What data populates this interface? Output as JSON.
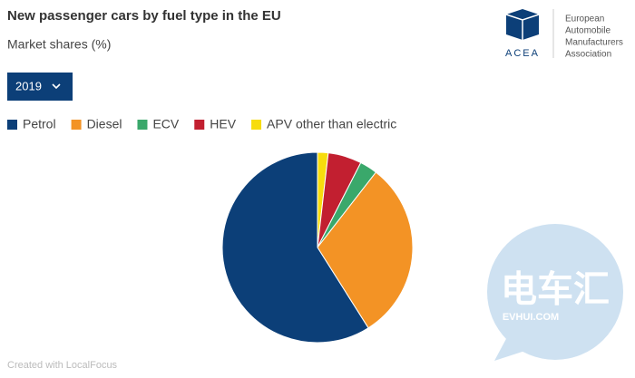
{
  "chart_data": {
    "type": "pie",
    "title": "New passenger cars by fuel type in the EU",
    "subtitle": "Market shares (%)",
    "categories": [
      "Petrol",
      "Diesel",
      "ECV",
      "HEV",
      "APV other than electric"
    ],
    "values": [
      58.9,
      30.5,
      3.0,
      5.7,
      1.8
    ],
    "colors": [
      "#0c3f78",
      "#f39325",
      "#3aa86b",
      "#c21f30",
      "#f7dc0d"
    ],
    "legend": "top-left"
  },
  "selector": "2019",
  "credit": "Created with LocalFocus",
  "logo": {
    "name": "ACEA",
    "lines": [
      "European",
      "Automobile",
      "Manufacturers",
      "Association"
    ]
  },
  "watermark": {
    "title": "电车汇",
    "url": "EVHUI.COM"
  }
}
